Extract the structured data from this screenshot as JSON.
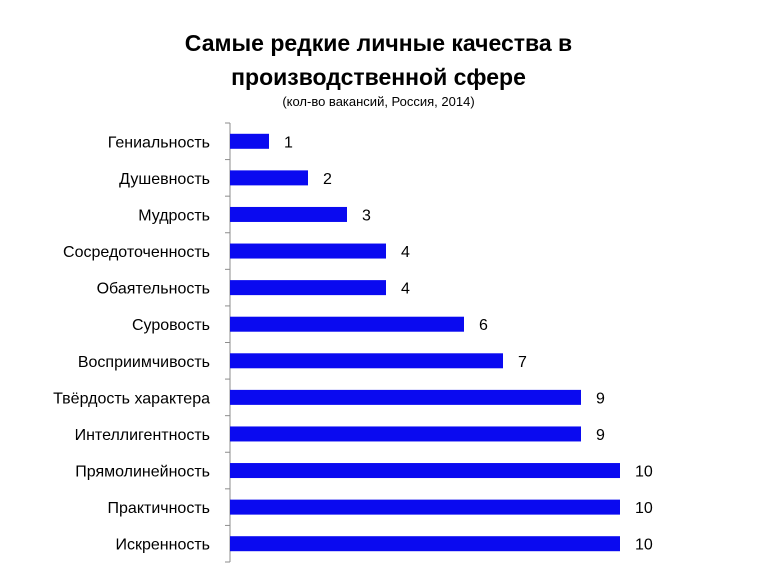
{
  "chart_data": {
    "type": "bar",
    "orientation": "horizontal",
    "title_line1": "Самые редкие личные качества в",
    "title_line2": "производственной сфере",
    "subtitle": "(кол-во вакансий, Россия, 2014)",
    "categories": [
      "Гениальность",
      "Душевность",
      "Мудрость",
      "Сосредоточенность",
      "Обаятельность",
      "Суровость",
      "Восприимчивость",
      "Твёрдость характера",
      "Интеллигентность",
      "Прямолинейность",
      "Практичность",
      "Искренность"
    ],
    "values": [
      1,
      2,
      3,
      4,
      4,
      6,
      7,
      9,
      9,
      10,
      10,
      10
    ],
    "xlim": [
      0,
      10
    ],
    "bar_color": "#0A0AF0",
    "grid": false,
    "data_labels": true
  }
}
